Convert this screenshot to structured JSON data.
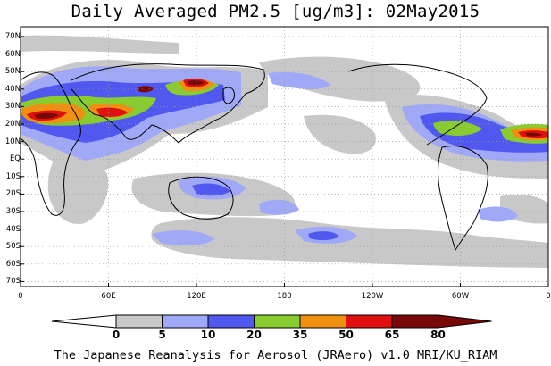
{
  "title": "Daily Averaged PM2.5 [ug/m3]: 02May2015",
  "credit": "The Japanese Reanalysis for Aerosol (JRAero) v1.0 MRI/KU_RIAM",
  "lat_labels": [
    "70N",
    "60N",
    "50N",
    "40N",
    "30N",
    "20N",
    "10N",
    "EQ",
    "10S",
    "20S",
    "30S",
    "40S",
    "50S",
    "60S",
    "70S"
  ],
  "lon_labels": [
    "0",
    "60E",
    "120E",
    "180",
    "120W",
    "60W",
    "0"
  ],
  "colorbar": {
    "levels": [
      "0",
      "5",
      "10",
      "20",
      "35",
      "50",
      "65",
      "80"
    ],
    "colors": [
      "#ffffff",
      "#c8c8c8",
      "#a0a8f8",
      "#5058f0",
      "#88cc30",
      "#f09010",
      "#e01010",
      "#780808"
    ]
  }
}
